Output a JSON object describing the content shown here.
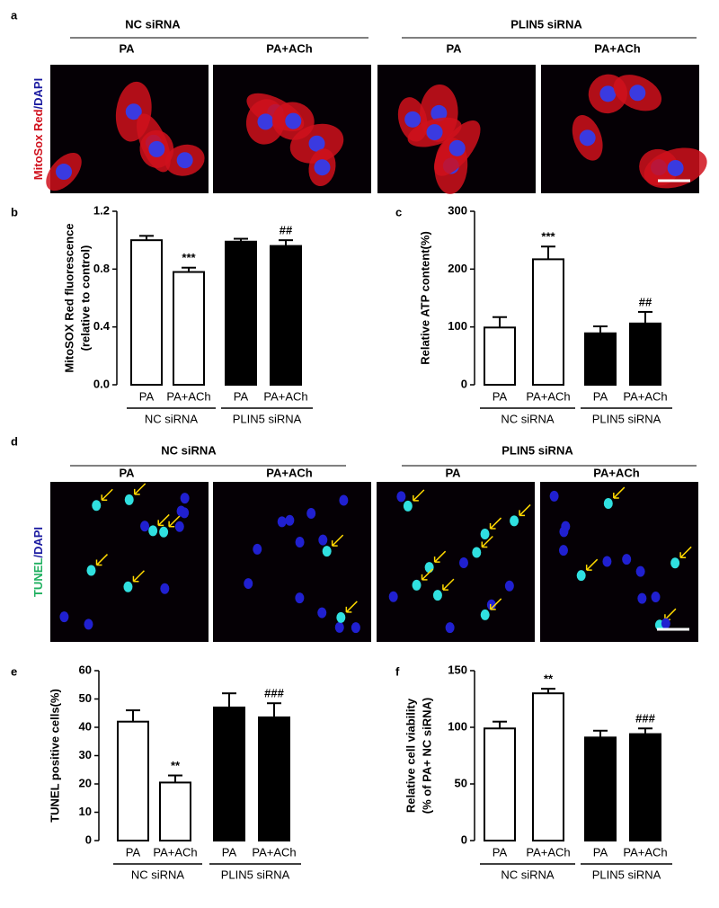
{
  "figure": {
    "a": {
      "label": "a",
      "groups": [
        "NC siRNA",
        "PLIN5 siRNA"
      ],
      "conditions": [
        "PA",
        "PA+ACh",
        "PA",
        "PA+ACh"
      ],
      "stain": [
        "MitoSox Red",
        "/DAPI"
      ]
    },
    "d": {
      "label": "d",
      "groups": [
        "NC siRNA",
        "PLIN5 siRNA"
      ],
      "conditions": [
        "PA",
        "PA+ACh",
        "PA",
        "PA+ACh"
      ],
      "stain": [
        "TUNEL",
        "/DAPI"
      ]
    }
  },
  "chart_data": [
    {
      "type": "bar",
      "panel": "b",
      "ylabel": [
        "MitoSOX Red fluorescence",
        "(relative to control)"
      ],
      "categories": [
        "PA",
        "PA+ACh",
        "PA",
        "PA+ACh"
      ],
      "groups": [
        "NC siRNA",
        "PLIN5 siRNA"
      ],
      "values": [
        1.0,
        0.78,
        0.99,
        0.96
      ],
      "errors": [
        0.03,
        0.03,
        0.02,
        0.04
      ],
      "colors": [
        "#ffffff",
        "#ffffff",
        "#000000",
        "#000000"
      ],
      "annotations": [
        null,
        "***",
        null,
        "##"
      ],
      "ylim": [
        0,
        1.2
      ],
      "yticks": [
        {
          "value": 0,
          "label": "0.0"
        },
        0.4,
        0.8,
        1.2
      ]
    },
    {
      "type": "bar",
      "panel": "c",
      "ylabel": [
        "Relative ATP content(%)"
      ],
      "categories": [
        "PA",
        "PA+ACh",
        "PA",
        "PA+ACh"
      ],
      "groups": [
        "NC siRNA",
        "PLIN5 siRNA"
      ],
      "values": [
        99,
        217,
        89,
        106
      ],
      "errors": [
        18,
        22,
        12,
        20
      ],
      "colors": [
        "#ffffff",
        "#ffffff",
        "#000000",
        "#000000"
      ],
      "annotations": [
        null,
        "***",
        null,
        "##"
      ],
      "ylim": [
        0,
        300
      ],
      "yticks": [
        0,
        100,
        200,
        300
      ]
    },
    {
      "type": "bar",
      "panel": "e",
      "ylabel": [
        "TUNEL positive cells(%)"
      ],
      "categories": [
        "PA",
        "PA+ACh",
        "PA",
        "PA+ACh"
      ],
      "groups": [
        "NC siRNA",
        "PLIN5 siRNA"
      ],
      "values": [
        42,
        20.5,
        47,
        43.5
      ],
      "errors": [
        4,
        2.5,
        5,
        5
      ],
      "colors": [
        "#ffffff",
        "#ffffff",
        "#000000",
        "#000000"
      ],
      "annotations": [
        null,
        "**",
        null,
        "###"
      ],
      "ylim": [
        0,
        60
      ],
      "yticks": [
        0,
        10,
        20,
        30,
        40,
        50,
        60
      ]
    },
    {
      "type": "bar",
      "panel": "f",
      "ylabel": [
        "Relative cell viability",
        "(% of PA+ NC siRNA)"
      ],
      "categories": [
        "PA",
        "PA+ACh",
        "PA",
        "PA+ACh"
      ],
      "groups": [
        "NC siRNA",
        "PLIN5 siRNA"
      ],
      "values": [
        99,
        130,
        91,
        94
      ],
      "errors": [
        6,
        4,
        6,
        5
      ],
      "colors": [
        "#ffffff",
        "#ffffff",
        "#000000",
        "#000000"
      ],
      "annotations": [
        null,
        "**",
        null,
        "###"
      ],
      "ylim": [
        0,
        150
      ],
      "yticks": [
        0,
        50,
        100,
        150
      ]
    }
  ]
}
